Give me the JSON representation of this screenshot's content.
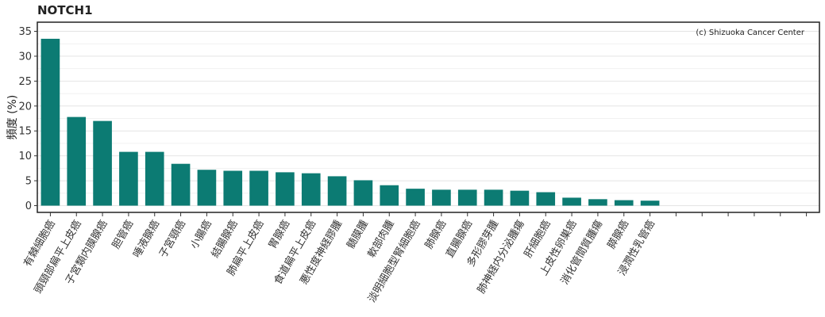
{
  "chart_data": {
    "type": "bar",
    "title": "NOTCH1",
    "ylabel": "頻度 (%)",
    "xlabel": "",
    "credit": "(c) Shizuoka Cancer Center",
    "ylim": [
      0,
      37
    ],
    "yticks": [
      0,
      5,
      10,
      15,
      20,
      25,
      30,
      35
    ],
    "total_slots": 30,
    "bar_color": "#0c7b73",
    "grid": true,
    "categories": [
      "有棘細胞癌",
      "頭頸部扁平上皮癌",
      "子宮類内膜腺癌",
      "胆管癌",
      "唾液腺癌",
      "子宮頸癌",
      "小腸癌",
      "結腸腺癌",
      "肺扁平上皮癌",
      "胃腺癌",
      "食道扁平上皮癌",
      "悪性度神経膠腫",
      "髄膜腫",
      "軟部肉腫",
      "淡明細胞型腎細胞癌",
      "肺腺癌",
      "直腸腺癌",
      "多形膠芽腫",
      "肺神経内分泌腫瘍",
      "肝細胞癌",
      "上皮性卵巣癌",
      "消化管間質腫瘍",
      "膵腺癌",
      "浸潤性乳管癌"
    ],
    "values": [
      33.5,
      17.8,
      17.0,
      10.8,
      10.8,
      8.4,
      7.2,
      7.0,
      7.0,
      6.7,
      6.5,
      5.9,
      5.1,
      4.1,
      3.4,
      3.2,
      3.2,
      3.2,
      3.0,
      2.7,
      1.6,
      1.3,
      1.1,
      1.0
    ]
  }
}
